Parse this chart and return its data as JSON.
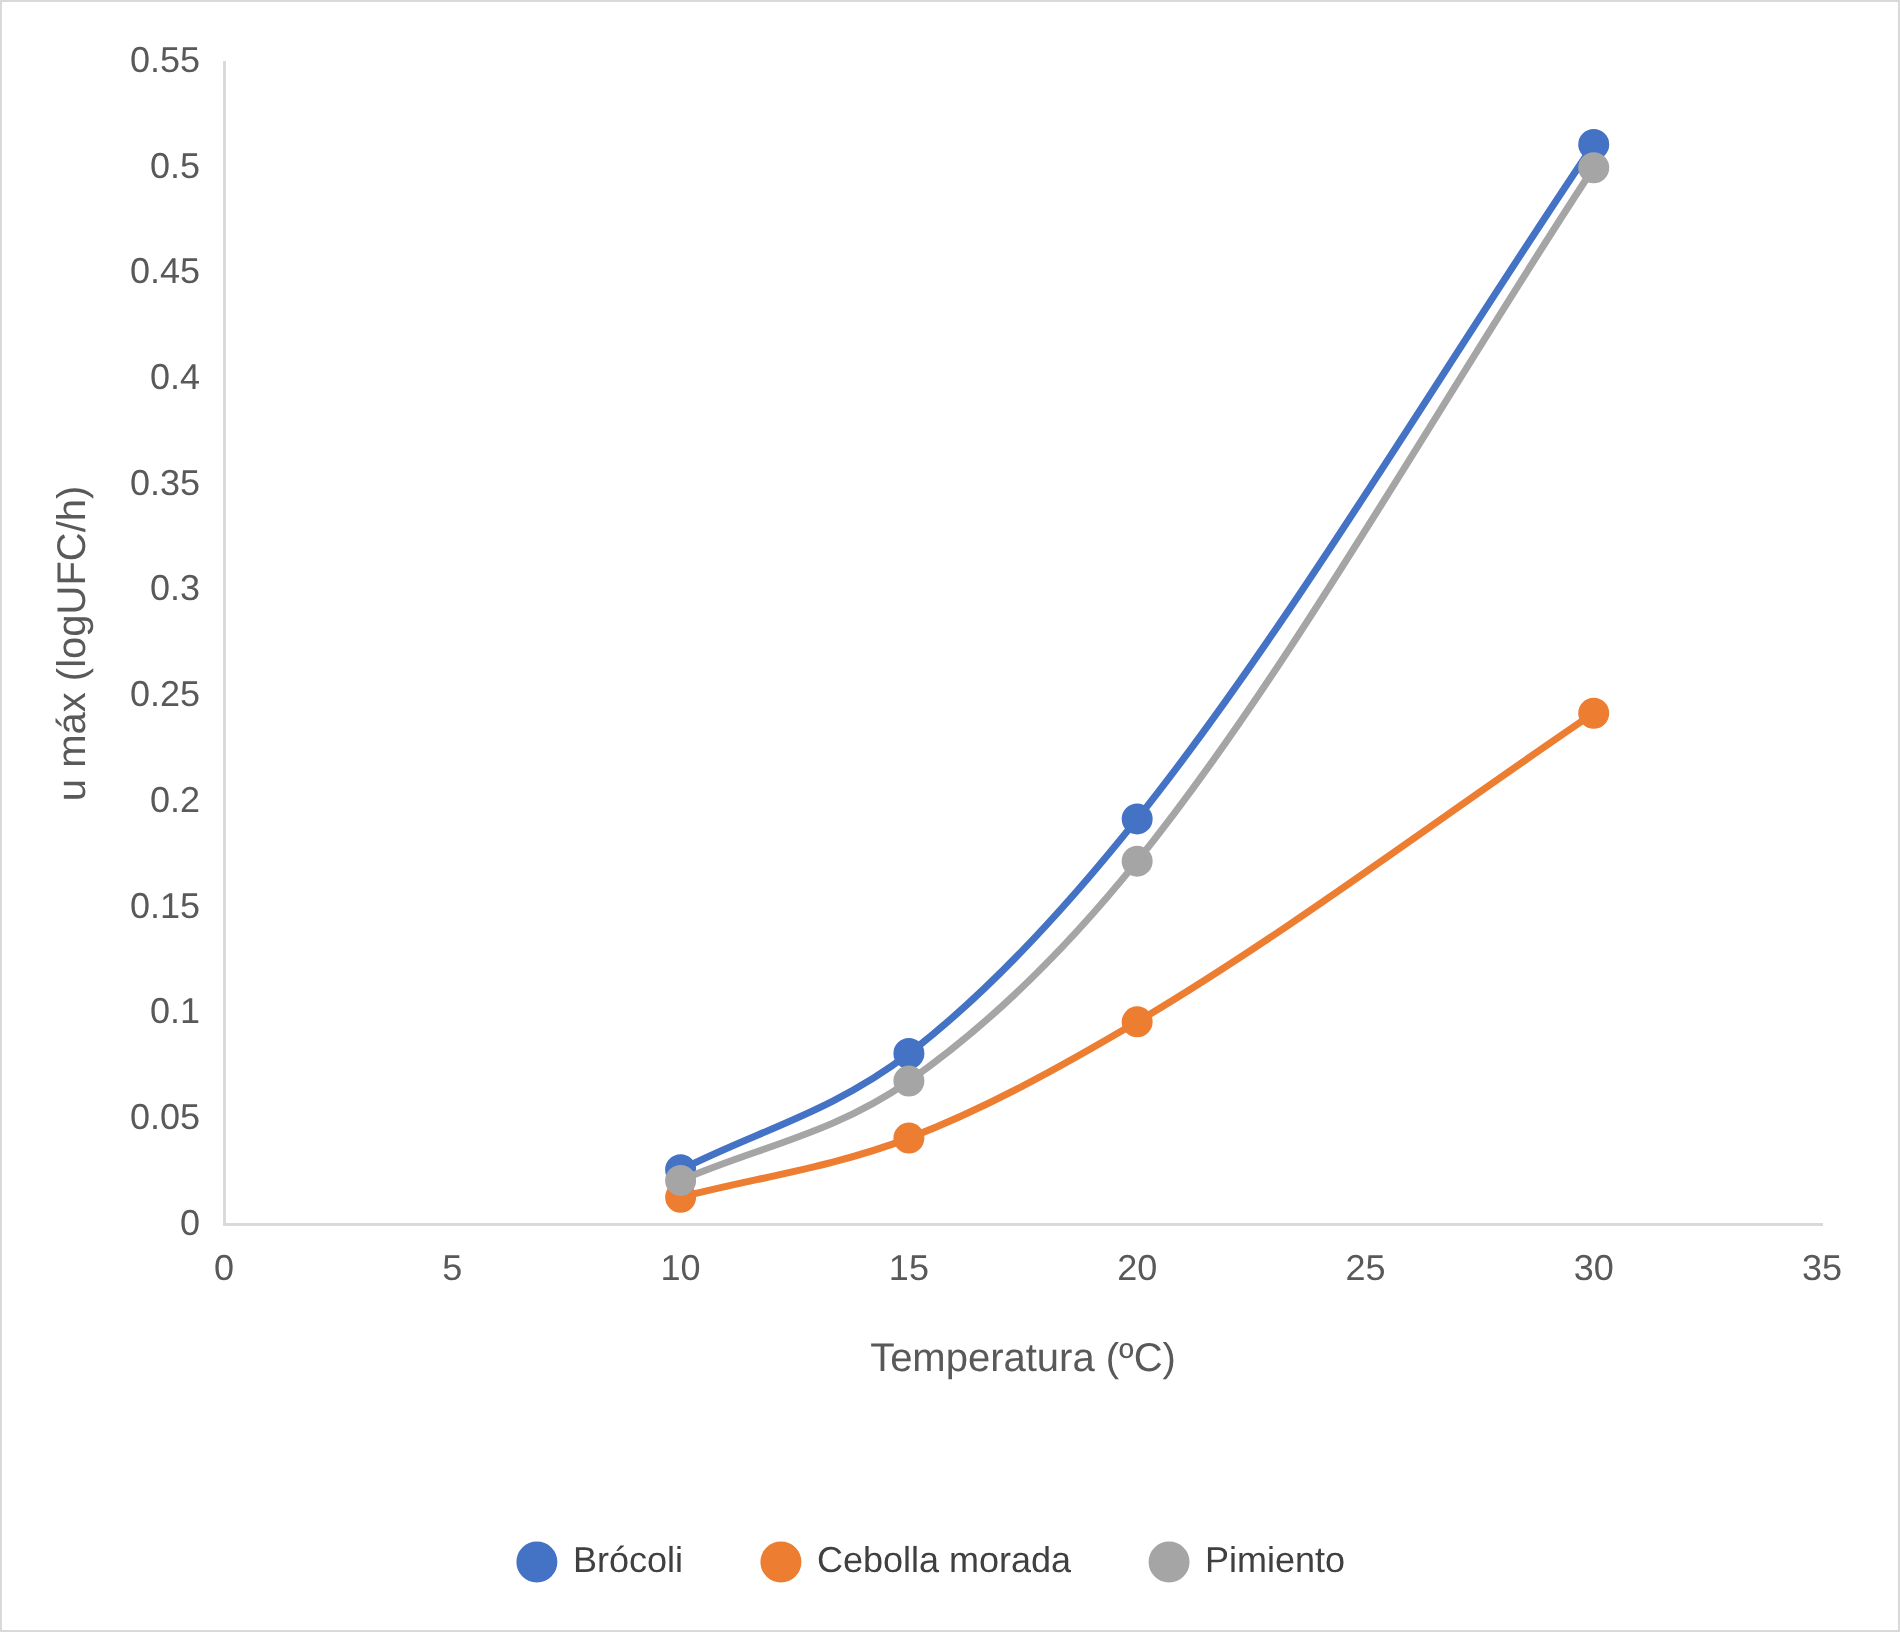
{
  "chart_data": {
    "type": "line",
    "xlabel": "Temperatura (ºC)",
    "ylabel": "u máx (logUFC/h)",
    "x": [
      10,
      15,
      20,
      30
    ],
    "series": [
      {
        "name": "Brócoli",
        "color": "#4472c4",
        "values": [
          0.026,
          0.081,
          0.192,
          0.511
        ]
      },
      {
        "name": "Cebolla morada",
        "color": "#ed7d31",
        "values": [
          0.013,
          0.041,
          0.096,
          0.242
        ]
      },
      {
        "name": "Pimiento",
        "color": "#a5a5a5",
        "values": [
          0.021,
          0.068,
          0.172,
          0.5
        ]
      }
    ],
    "xlim": [
      0,
      35
    ],
    "xticks": [
      0,
      5,
      10,
      15,
      20,
      25,
      30,
      35
    ],
    "ylim": [
      0,
      0.55
    ],
    "yticks": [
      0,
      0.05,
      0.1,
      0.15,
      0.2,
      0.25,
      0.3,
      0.35,
      0.4,
      0.45,
      0.5,
      0.55
    ],
    "grid": false,
    "legend": "bottom",
    "marker": "circle",
    "line_style": "solid"
  }
}
